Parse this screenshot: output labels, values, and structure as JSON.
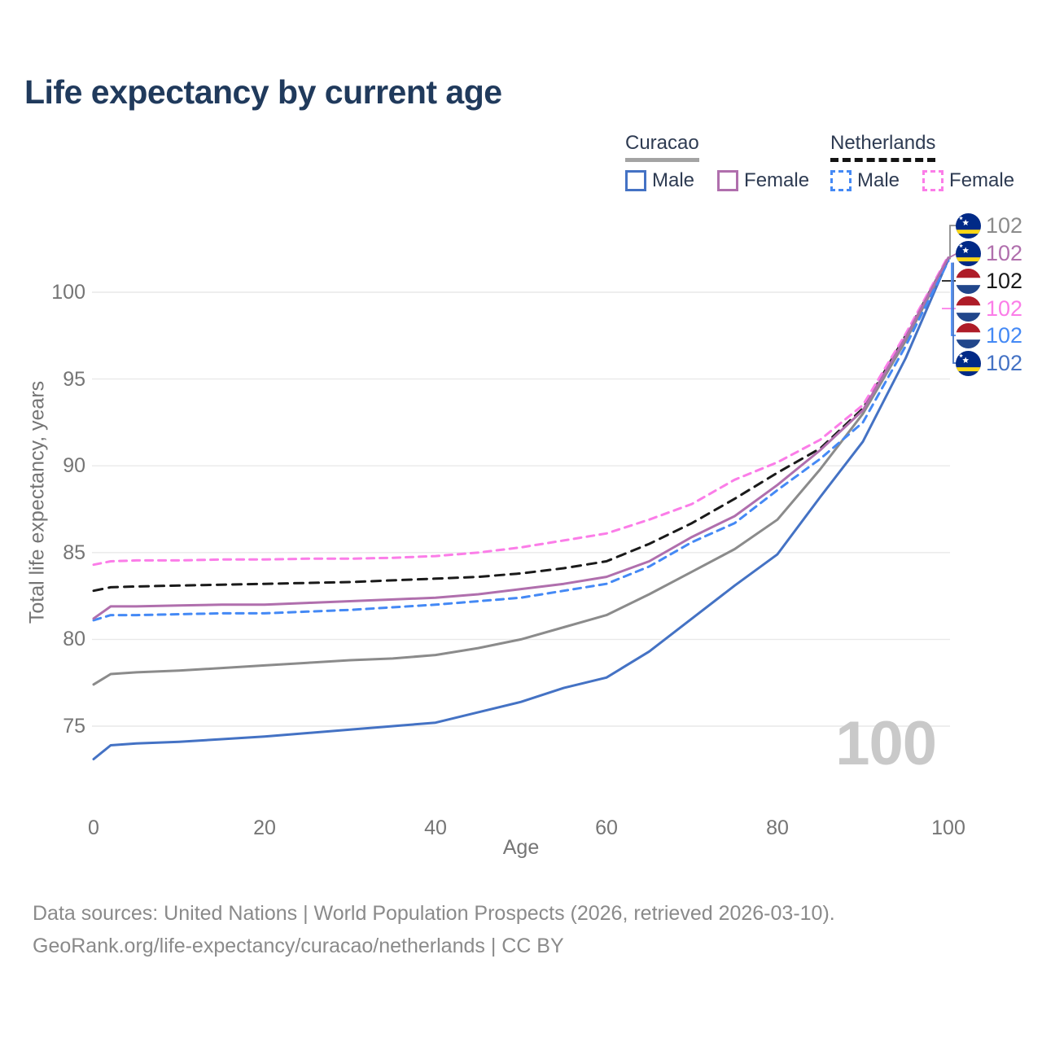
{
  "title": "Life expectancy by current age",
  "legend": {
    "groups": [
      {
        "name": "Curacao",
        "underline_color": "#a3a3a3",
        "underline_style": "solid",
        "items": [
          {
            "label": "Male",
            "color": "#4472c4",
            "dashed": false
          },
          {
            "label": "Female",
            "color": "#b06fad",
            "dashed": false
          }
        ]
      },
      {
        "name": "Netherlands",
        "underline_color": "#141414",
        "underline_style": "dashed",
        "items": [
          {
            "label": "Male",
            "color": "#4489f5",
            "dashed": true
          },
          {
            "label": "Female",
            "color": "#fb7de8",
            "dashed": true
          }
        ]
      }
    ]
  },
  "watermark": "100",
  "chart_data": {
    "type": "line",
    "title": "Life expectancy by current age",
    "xlabel": "Age",
    "ylabel": "Total life expectancy, years",
    "xlim": [
      0,
      100
    ],
    "ylim": [
      73,
      102.5
    ],
    "xticks": [
      0,
      20,
      40,
      60,
      80,
      100
    ],
    "yticks": [
      75,
      80,
      85,
      90,
      95,
      100
    ],
    "grid": true,
    "legend_position": "top-right",
    "x": [
      0,
      2,
      5,
      10,
      15,
      20,
      25,
      30,
      35,
      40,
      45,
      50,
      55,
      60,
      65,
      70,
      75,
      80,
      85,
      90,
      95,
      100
    ],
    "series": [
      {
        "key": "curacao_total",
        "name": "Curacao",
        "country": "Curacao",
        "sex": "Both",
        "color": "#8b8b8b",
        "dash": "solid",
        "values": [
          77.4,
          78.0,
          78.1,
          78.2,
          78.35,
          78.5,
          78.65,
          78.8,
          78.9,
          79.1,
          79.5,
          80.0,
          80.7,
          81.4,
          82.6,
          83.9,
          85.2,
          86.9,
          89.8,
          93.0,
          97.2,
          101.9
        ]
      },
      {
        "key": "curacao_male",
        "name": "Curacao Male",
        "country": "Curacao",
        "sex": "Male",
        "color": "#4472c4",
        "dash": "solid",
        "values": [
          73.1,
          73.9,
          74.0,
          74.1,
          74.25,
          74.4,
          74.6,
          74.8,
          75.0,
          75.2,
          75.8,
          76.4,
          77.2,
          77.8,
          79.3,
          81.2,
          83.1,
          84.9,
          88.2,
          91.4,
          96.2,
          101.9
        ]
      },
      {
        "key": "nl_male",
        "name": "Netherlands Male",
        "country": "Netherlands",
        "sex": "Male",
        "color": "#4489f5",
        "dash": "9 7",
        "values": [
          81.1,
          81.4,
          81.4,
          81.45,
          81.5,
          81.5,
          81.6,
          81.7,
          81.85,
          82.0,
          82.2,
          82.4,
          82.8,
          83.2,
          84.2,
          85.6,
          86.7,
          88.6,
          90.4,
          92.5,
          96.9,
          101.8
        ]
      },
      {
        "key": "nl_total",
        "name": "Netherlands",
        "country": "Netherlands",
        "sex": "Both",
        "color": "#1a1a1a",
        "dash": "11 8",
        "values": [
          82.8,
          83.0,
          83.05,
          83.1,
          83.15,
          83.2,
          83.25,
          83.3,
          83.4,
          83.5,
          83.6,
          83.8,
          84.1,
          84.5,
          85.5,
          86.7,
          88.1,
          89.6,
          91.0,
          93.3,
          97.5,
          102.0
        ]
      },
      {
        "key": "nl_female",
        "name": "Netherlands Female",
        "country": "Netherlands",
        "sex": "Female",
        "color": "#fb7de8",
        "dash": "9 7",
        "values": [
          84.3,
          84.5,
          84.55,
          84.55,
          84.6,
          84.6,
          84.65,
          84.65,
          84.7,
          84.8,
          85.0,
          85.3,
          85.7,
          86.1,
          86.9,
          87.8,
          89.2,
          90.2,
          91.5,
          93.5,
          97.6,
          102.1
        ]
      },
      {
        "key": "curacao_female",
        "name": "Curacao Female",
        "country": "Curacao",
        "sex": "Female",
        "color": "#b06fad",
        "dash": "solid",
        "values": [
          81.2,
          81.9,
          81.9,
          81.95,
          82.0,
          82.0,
          82.1,
          82.2,
          82.3,
          82.4,
          82.6,
          82.9,
          83.2,
          83.6,
          84.5,
          85.9,
          87.1,
          88.9,
          90.9,
          93.2,
          97.4,
          102.0
        ]
      }
    ],
    "end_labels": [
      {
        "flag": "curacao",
        "series_key": "curacao_total",
        "value": "102",
        "color": "#8b8b8b"
      },
      {
        "flag": "curacao",
        "series_key": "curacao_female",
        "value": "102",
        "color": "#b06fad"
      },
      {
        "flag": "netherlands",
        "series_key": "nl_total",
        "value": "102",
        "color": "#1a1a1a"
      },
      {
        "flag": "netherlands",
        "series_key": "nl_female",
        "value": "102",
        "color": "#fb7de8"
      },
      {
        "flag": "netherlands",
        "series_key": "nl_male",
        "value": "102",
        "color": "#4489f5"
      },
      {
        "flag": "curacao",
        "series_key": "curacao_male",
        "value": "102",
        "color": "#4472c4"
      }
    ]
  },
  "flag_colors": {
    "curacao": {
      "field": "#012a87",
      "stripe": "#f9d616",
      "star": "#ffffff"
    },
    "netherlands": {
      "top": "#ae1c28",
      "middle": "#ffffff",
      "bottom": "#21468b"
    }
  },
  "footer": {
    "line1": "Data sources: United Nations | World Population Prospects (2026, retrieved 2026-03-10).",
    "line2": "GeoRank.org/life-expectancy/curacao/netherlands | CC BY"
  }
}
